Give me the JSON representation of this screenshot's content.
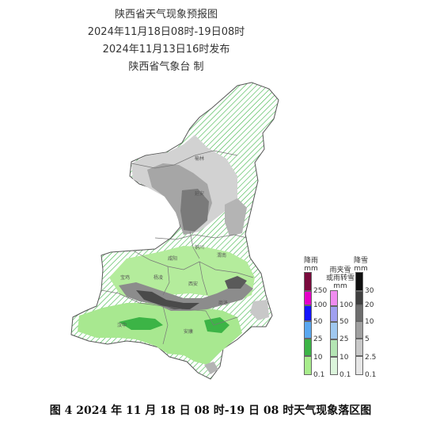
{
  "title": {
    "line1": "陕西省天气现象预报图",
    "line2": "2024年11月18日08时-19日08时",
    "line3": "2024年11月13日16时发布",
    "line4": "陕西省气象台 制"
  },
  "cities": [
    "榆林",
    "延安",
    "铜川",
    "渭南",
    "咸阳",
    "宝鸡",
    "杨凌",
    "西安",
    "商洛",
    "汉中",
    "安康"
  ],
  "legend": {
    "rain": {
      "label_line1": "降雨",
      "label_line2": "mm",
      "ticks": [
        "250",
        "100",
        "50",
        "25",
        "10",
        "0.1"
      ],
      "colors": [
        "#7a0a3d",
        "#e600c8",
        "#1414ff",
        "#5aa8f0",
        "#3cb446",
        "#a8ec8c"
      ]
    },
    "sleet": {
      "label_line1": "雨夹雪",
      "label_line2": "或雨转雪",
      "label_line3": "mm",
      "ticks": [
        "100",
        "50",
        "25",
        "10",
        "0.1"
      ],
      "colors": [
        "#f08cf0",
        "#a0a0f0",
        "#a0c8f0",
        "#b4e6b4",
        "#dcf5dc"
      ]
    },
    "snow": {
      "label_line1": "降雪",
      "label_line2": "mm",
      "ticks": [
        "30",
        "20",
        "10",
        "5",
        "2.5",
        "0.1"
      ],
      "colors": [
        "#101010",
        "#404040",
        "#6e6e6e",
        "#a0a0a0",
        "#c8c8c8",
        "#e6e6e6"
      ]
    }
  },
  "caption": "图 4 2024 年 11 月 18 日 08 时-19 日 08 时天气现象落区图"
}
